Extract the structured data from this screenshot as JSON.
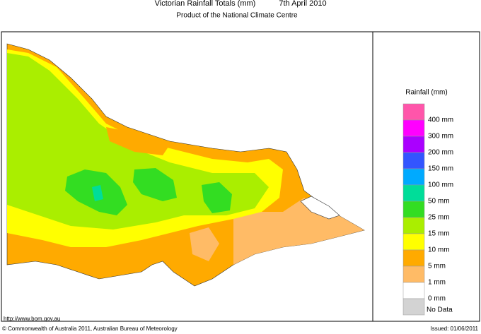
{
  "header": {
    "title": "Victorian Rainfall Totals (mm)",
    "date": "7th April 2010",
    "subtitle": "Product of the National Climate Centre"
  },
  "legend": {
    "title": "Rainfall (mm)",
    "colors": [
      "#ff55aa",
      "#ff00ff",
      "#aa00ff",
      "#3355ff",
      "#00aaff",
      "#00dd99",
      "#33dd22",
      "#aaee00",
      "#ffff00",
      "#ffaa00",
      "#ffbb66",
      "#ffffff",
      "#d3d3d3"
    ],
    "labels": [
      "400 mm",
      "300 mm",
      "200 mm",
      "150 mm",
      "100 mm",
      "50 mm",
      "25 mm",
      "15 mm",
      "10 mm",
      "5 mm",
      "1 mm",
      "0 mm",
      "No Data"
    ]
  },
  "footer": {
    "url": "http://www.bom.gov.au",
    "copyright": "© Commonwealth of Australia 2011, Australian Bureau of Meteorology",
    "issued": "Issued: 01/06/2011"
  }
}
